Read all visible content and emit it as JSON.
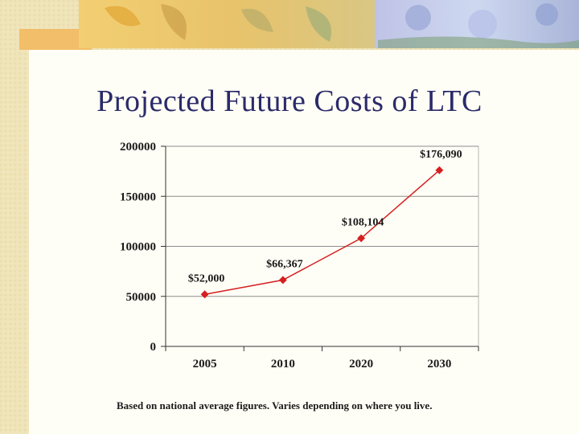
{
  "slide": {
    "title": "Projected Future Costs of LTC",
    "footnote": "Based on national average figures.  Varies depending on where you live."
  },
  "chart_data": {
    "type": "line",
    "title": "",
    "xlabel": "",
    "ylabel": "",
    "categories": [
      "2005",
      "2010",
      "2020",
      "2030"
    ],
    "series": [
      {
        "values": [
          52000,
          66367,
          108104,
          176090
        ],
        "labels": [
          "$52,000",
          "$66,367",
          "$108,104",
          "$176,090"
        ]
      }
    ],
    "ylim": [
      0,
      200000
    ],
    "yticks": [
      0,
      50000,
      100000,
      150000,
      200000
    ],
    "grid": true,
    "legend": "none",
    "line_color": "#d42020",
    "grid_color": "#8c8c8c"
  }
}
